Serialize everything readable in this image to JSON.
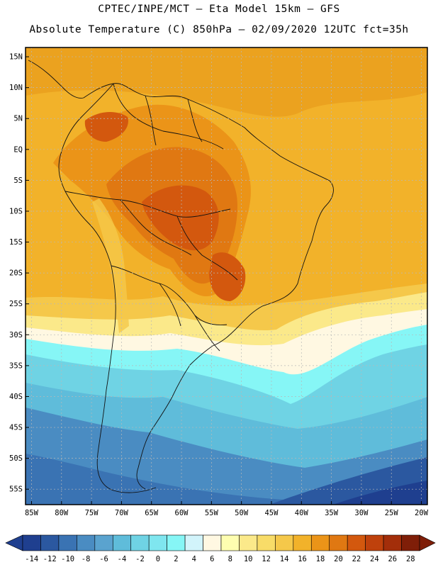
{
  "title": {
    "line1": "CPTEC/INPE/MCT –  Eta Model 15km – GFS",
    "line2": "Absolute Temperature (C) 850hPa – 02/09/2020 12UTC fct=35h"
  },
  "map": {
    "lat_labels": [
      "15N",
      "10N",
      "5N",
      "EQ",
      "5S",
      "10S",
      "15S",
      "20S",
      "25S",
      "30S",
      "35S",
      "40S",
      "45S",
      "50S",
      "55S"
    ],
    "lon_labels": [
      "85W",
      "80W",
      "75W",
      "70W",
      "65W",
      "60W",
      "55W",
      "50W",
      "45W",
      "40W",
      "35W",
      "30W",
      "25W",
      "20W"
    ],
    "lat_values": [
      15,
      10,
      5,
      0,
      -5,
      -10,
      -15,
      -20,
      -25,
      -30,
      -35,
      -40,
      -45,
      -50,
      -55
    ],
    "lon_values": [
      -85,
      -80,
      -75,
      -70,
      -65,
      -60,
      -55,
      -50,
      -45,
      -40,
      -35,
      -30,
      -25,
      -20
    ],
    "extent": {
      "lon_min": -86,
      "lon_max": -19,
      "lat_min": -57.5,
      "lat_max": 16.5
    }
  },
  "colorbar": {
    "labels": [
      "-14",
      "-12",
      "-10",
      "-8",
      "-6",
      "-4",
      "-2",
      "0",
      "2",
      "4",
      "6",
      "8",
      "10",
      "12",
      "14",
      "16",
      "18",
      "20",
      "22",
      "24",
      "26",
      "28"
    ],
    "colors": [
      "#1f3f8f",
      "#2b58a0",
      "#3a73b3",
      "#4a8cc2",
      "#5aa3cf",
      "#5fbcda",
      "#6fd3e4",
      "#7fe6ef",
      "#86f6f6",
      "#d2f4fb",
      "#fff8e2",
      "#fefeb0",
      "#fbe98a",
      "#f8dc68",
      "#f5c84a",
      "#f2b22a",
      "#eb9418",
      "#e07812",
      "#d3580e",
      "#bf410c",
      "#a32e0a",
      "#7f1e08"
    ],
    "under_color": "#1f3f8f",
    "over_color": "#7f1e08"
  }
}
